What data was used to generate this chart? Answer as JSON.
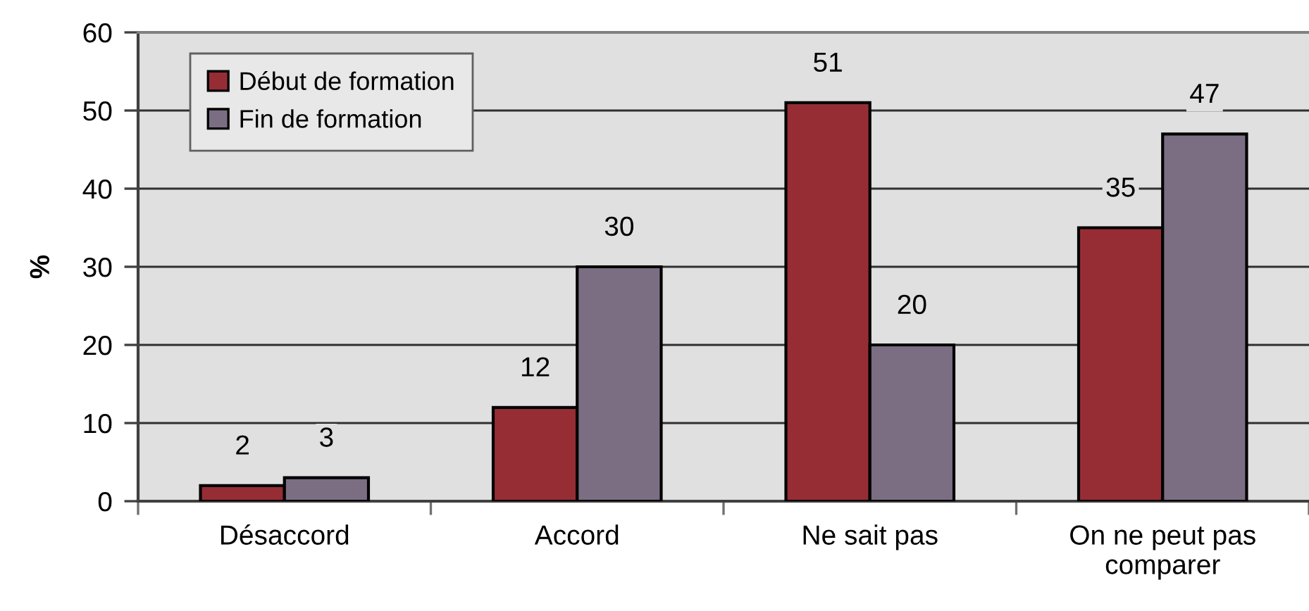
{
  "chart_data": {
    "type": "bar",
    "ylabel": "%",
    "categories": [
      "Désaccord",
      "Accord",
      "Ne sait pas",
      "On ne peut pas\ncomparer"
    ],
    "series": [
      {
        "name": "Début de formation",
        "color": "#962d35",
        "values": [
          2,
          12,
          51,
          35
        ]
      },
      {
        "name": "Fin de formation",
        "color": "#7b6e83",
        "values": [
          3,
          30,
          20,
          47
        ]
      }
    ],
    "ylim": [
      0,
      60
    ],
    "yticks": [
      0,
      10,
      20,
      30,
      40,
      50,
      60
    ],
    "grid": "y",
    "legend": "top left",
    "data_labels": true
  }
}
